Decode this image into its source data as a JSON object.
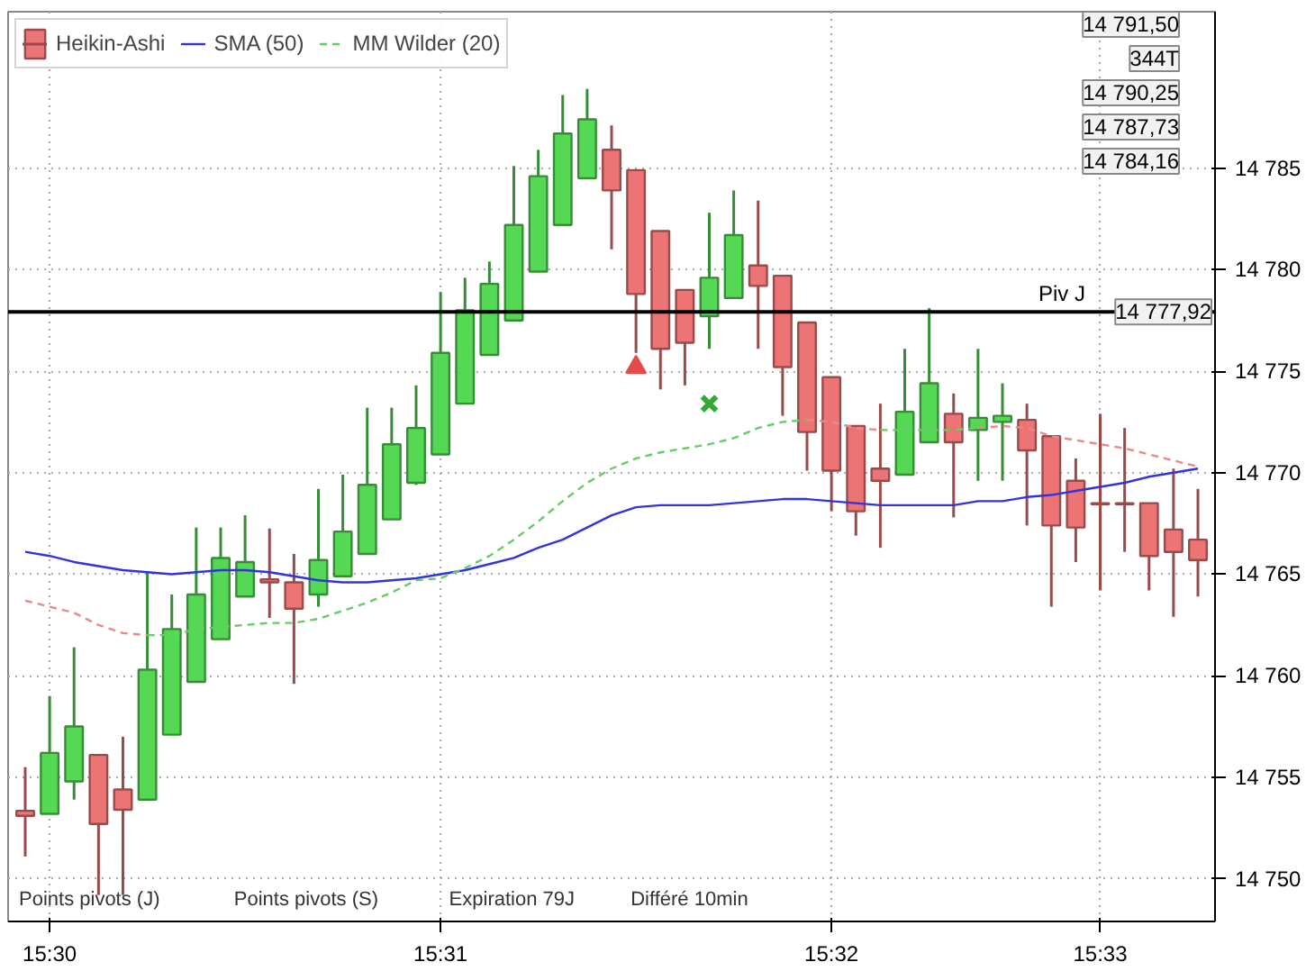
{
  "chart_data": {
    "type": "candlestick",
    "categories": [
      null,
      "15:30",
      null,
      null,
      null,
      null,
      null,
      null,
      null,
      null,
      null,
      null,
      null,
      null,
      null,
      null,
      null,
      "15:31",
      null,
      null,
      null,
      null,
      null,
      null,
      null,
      null,
      null,
      null,
      null,
      null,
      null,
      null,
      null,
      "15:32",
      null,
      null,
      null,
      null,
      null,
      null,
      null,
      null,
      null,
      null,
      "15:33",
      null,
      null,
      null,
      null
    ],
    "series": [
      {
        "name": "Heikin-Ashi",
        "ohlc": [
          [
            14753.35,
            14755.5,
            14751.1,
            14753.1
          ],
          [
            14753.2,
            14759.0,
            14753.2,
            14756.2
          ],
          [
            14754.8,
            14761.4,
            14753.9,
            14757.5
          ],
          [
            14756.1,
            14756.1,
            14749.2,
            14752.7
          ],
          [
            14754.4,
            14757.0,
            14749.2,
            14753.4
          ],
          [
            14753.9,
            14765.1,
            14753.9,
            14760.3
          ],
          [
            14757.1,
            14764.0,
            14757.1,
            14762.3
          ],
          [
            14759.7,
            14767.3,
            14759.7,
            14764.0
          ],
          [
            14761.8,
            14767.3,
            14761.8,
            14765.8
          ],
          [
            14763.9,
            14767.9,
            14763.9,
            14765.6
          ],
          [
            14764.75,
            14767.25,
            14762.85,
            14764.6
          ],
          [
            14764.6,
            14766.0,
            14759.6,
            14763.3
          ],
          [
            14764.0,
            14769.2,
            14763.4,
            14765.7
          ],
          [
            14764.9,
            14769.9,
            14764.9,
            14767.1
          ],
          [
            14766.0,
            14773.2,
            14766.0,
            14769.4
          ],
          [
            14767.7,
            14773.2,
            14767.7,
            14771.4
          ],
          [
            14769.5,
            14774.3,
            14769.4,
            14772.2
          ],
          [
            14770.9,
            14778.9,
            14770.9,
            14775.9
          ],
          [
            14773.4,
            14779.6,
            14773.4,
            14778.0
          ],
          [
            14775.8,
            14780.4,
            14775.8,
            14779.3
          ],
          [
            14777.5,
            14785.1,
            14777.5,
            14782.2
          ],
          [
            14779.9,
            14785.9,
            14779.9,
            14784.6
          ],
          [
            14782.2,
            14788.6,
            14782.2,
            14786.7
          ],
          [
            14784.5,
            14788.9,
            14784.5,
            14787.4
          ],
          [
            14785.9,
            14787.1,
            14781.0,
            14783.9
          ],
          [
            14784.9,
            14784.9,
            14775.9,
            14778.8
          ],
          [
            14781.9,
            14781.9,
            14774.1,
            14776.1
          ],
          [
            14779.0,
            14779.0,
            14774.3,
            14776.4
          ],
          [
            14777.7,
            14782.8,
            14776.1,
            14779.6
          ],
          [
            14778.6,
            14783.9,
            14778.6,
            14781.7
          ],
          [
            14780.2,
            14783.4,
            14776.1,
            14779.2
          ],
          [
            14779.7,
            14779.7,
            14772.8,
            14775.2
          ],
          [
            14777.4,
            14777.4,
            14770.1,
            14772.0
          ],
          [
            14774.7,
            14774.7,
            14768.1,
            14770.1
          ],
          [
            14772.3,
            14772.3,
            14766.9,
            14768.1
          ],
          [
            14770.2,
            14773.4,
            14766.3,
            14769.6
          ],
          [
            14769.9,
            14776.1,
            14769.9,
            14773.0
          ],
          [
            14771.5,
            14778.1,
            14771.5,
            14774.4
          ],
          [
            14772.9,
            14773.9,
            14767.8,
            14771.5
          ],
          [
            14772.1,
            14776.1,
            14769.6,
            14772.7
          ],
          [
            14772.5,
            14774.4,
            14769.6,
            14772.8
          ],
          [
            14772.6,
            14773.4,
            14767.4,
            14771.1
          ],
          [
            14771.8,
            14771.8,
            14763.4,
            14767.4
          ],
          [
            14769.6,
            14770.7,
            14765.6,
            14767.3
          ],
          [
            14768.5,
            14772.9,
            14764.2,
            14768.45
          ],
          [
            14768.5,
            14772.2,
            14766.1,
            14768.45
          ],
          [
            14768.5,
            14768.5,
            14764.2,
            14765.9
          ],
          [
            14767.2,
            14770.2,
            14762.9,
            14766.1
          ],
          [
            14766.7,
            14769.2,
            14763.9,
            14765.7
          ]
        ],
        "colors": [
          "#ec7474",
          "#55d955",
          "#55d955",
          "#ec7474",
          "#ec7474",
          "#55d955",
          "#55d955",
          "#55d955",
          "#55d955",
          "#55d955",
          "#ec7474",
          "#ec7474",
          "#55d955",
          "#55d955",
          "#55d955",
          "#55d955",
          "#55d955",
          "#55d955",
          "#55d955",
          "#55d955",
          "#55d955",
          "#55d955",
          "#55d955",
          "#55d955",
          "#ec7474",
          "#ec7474",
          "#ec7474",
          "#ec7474",
          "#55d955",
          "#55d955",
          "#ec7474",
          "#ec7474",
          "#ec7474",
          "#ec7474",
          "#ec7474",
          "#ec7474",
          "#55d955",
          "#55d955",
          "#ec7474",
          "#55d955",
          "#55d955",
          "#ec7474",
          "#ec7474",
          "#ec7474",
          "#ec7474",
          "#ec7474",
          "#ec7474",
          "#ec7474",
          "#ec7474"
        ]
      },
      {
        "name": "SMA (50)",
        "type": "line",
        "color": "#3333dd",
        "values": [
          14766.1,
          14765.9,
          14765.6,
          14765.4,
          14765.2,
          14765.1,
          14765.0,
          14765.1,
          14765.2,
          14765.2,
          14765.1,
          14764.9,
          14764.7,
          14764.6,
          14764.6,
          14764.7,
          14764.8,
          14765.0,
          14765.2,
          14765.5,
          14765.8,
          14766.3,
          14766.7,
          14767.3,
          14767.9,
          14768.3,
          14768.4,
          14768.4,
          14768.4,
          14768.5,
          14768.6,
          14768.7,
          14768.7,
          14768.6,
          14768.5,
          14768.4,
          14768.4,
          14768.4,
          14768.4,
          14768.6,
          14768.6,
          14768.8,
          14768.9,
          14769.1,
          14769.3,
          14769.5,
          14769.8,
          14770.0,
          14770.2
        ]
      },
      {
        "name": "MM Wilder (20)",
        "type": "line",
        "line_style": "dashed",
        "color": "#66cc66",
        "values": [
          null,
          null,
          null,
          null,
          null,
          14762.0,
          14762.0,
          14762.3,
          14762.4,
          14762.5,
          14762.6,
          14762.6,
          14762.8,
          14763.2,
          14763.6,
          14764.1,
          14764.7,
          14764.8,
          14765.3,
          14765.9,
          14766.7,
          14767.6,
          14768.6,
          14769.5,
          14770.2,
          14770.7,
          14771.0,
          14771.2,
          14771.4,
          14771.7,
          14772.2,
          14772.5,
          14772.6,
          null,
          null,
          14772.1,
          14772.1,
          14772.1,
          14772.1,
          14772.2,
          null,
          null,
          null,
          null,
          null,
          null,
          null,
          null,
          null
        ]
      },
      {
        "type": "line",
        "line_style": "dashed",
        "color": "#e88a8a",
        "values": [
          14763.7,
          14763.4,
          14763.1,
          14762.5,
          14762.1,
          14762.0,
          null,
          null,
          null,
          null,
          null,
          null,
          null,
          null,
          null,
          null,
          null,
          null,
          null,
          null,
          null,
          null,
          null,
          null,
          null,
          null,
          null,
          null,
          null,
          null,
          null,
          null,
          14772.6,
          14772.5,
          14772.2,
          14772.1,
          null,
          null,
          null,
          14772.2,
          14772.3,
          14772.2,
          14771.8,
          14771.6,
          14771.4,
          14771.2,
          14770.9,
          14770.6,
          14770.3
        ]
      },
      {
        "type": "scatter",
        "marker": "triangle",
        "color": "#e84a4a",
        "values": [
          null,
          null,
          null,
          null,
          null,
          null,
          null,
          null,
          null,
          null,
          null,
          null,
          null,
          null,
          null,
          null,
          null,
          null,
          null,
          null,
          null,
          null,
          null,
          null,
          null,
          14775.2,
          null,
          null,
          null,
          null,
          null,
          null,
          null,
          null,
          null,
          null,
          null,
          null,
          null,
          null,
          null,
          null,
          null,
          null,
          null,
          null,
          null,
          null,
          null
        ]
      },
      {
        "type": "scatter",
        "marker": "cross",
        "color": "#33aa33",
        "values": [
          null,
          null,
          null,
          null,
          null,
          null,
          null,
          null,
          null,
          null,
          null,
          null,
          null,
          null,
          null,
          null,
          null,
          null,
          null,
          null,
          null,
          null,
          null,
          null,
          null,
          null,
          null,
          null,
          14773.4,
          null,
          null,
          null,
          null,
          null,
          null,
          null,
          null,
          null,
          null,
          null,
          null,
          null,
          null,
          null,
          null,
          null,
          null,
          null,
          null
        ]
      }
    ],
    "ylim": [
      14747.9,
      14792.7
    ],
    "yticks": [
      {
        "value": 14750,
        "label": "14 750"
      },
      {
        "value": 14755,
        "label": "14 755"
      },
      {
        "value": 14760,
        "label": "14 760"
      },
      {
        "value": 14765,
        "label": "14 765"
      },
      {
        "value": 14770,
        "label": "14 770"
      },
      {
        "value": 14775,
        "label": "14 775"
      },
      {
        "value": 14780,
        "label": "14 780"
      },
      {
        "value": 14785,
        "label": "14 785"
      }
    ],
    "ref_lines": [
      {
        "axis": "y",
        "value": 14777.92,
        "label": "Piv J",
        "color": "#000000"
      }
    ],
    "annotations": [
      "Points pivots (J)",
      "Points pivots (S)",
      "Expiration 79J",
      "Différé 10min",
      "14 791,50",
      "344T",
      "14 790,25",
      "14 787,73",
      "14 784,16",
      {
        "text": "14 777,92",
        "y": 14777.92
      }
    ],
    "grid": true,
    "legend": "top left"
  }
}
